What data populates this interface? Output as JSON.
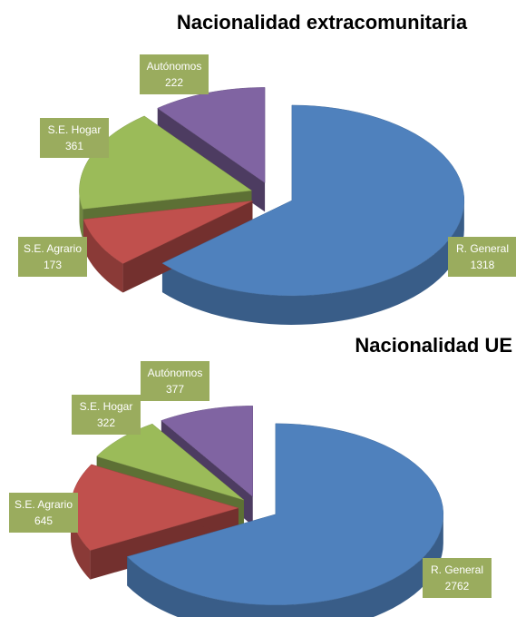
{
  "chart_data": [
    {
      "type": "pie3d",
      "title": "Nacionalidad extracomunitaria",
      "categories": [
        "R. General",
        "S.E. Agrario",
        "S.E. Hogar",
        "Autónomos"
      ],
      "values": [
        1318,
        173,
        361,
        222
      ],
      "colors": [
        "#4f81bd",
        "#c0504d",
        "#9bbb59",
        "#8064a2"
      ]
    },
    {
      "type": "pie3d",
      "title": "Nacionalidad UE",
      "categories": [
        "R. General",
        "S.E. Agrario",
        "S.E. Hogar",
        "Autónomos"
      ],
      "values": [
        2762,
        645,
        322,
        377
      ],
      "colors": [
        "#4f81bd",
        "#c0504d",
        "#9bbb59",
        "#8064a2"
      ]
    }
  ]
}
